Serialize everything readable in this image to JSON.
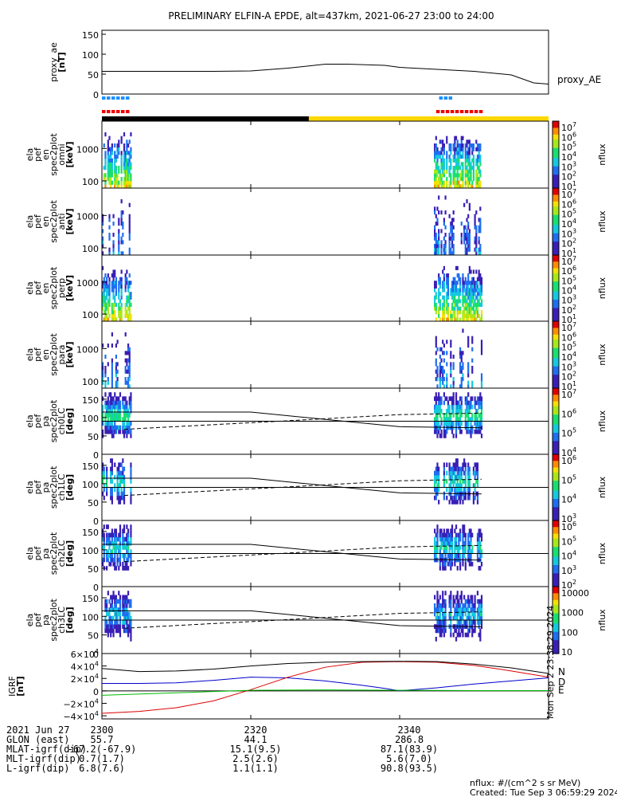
{
  "title": "PRELIMINARY ELFIN-A EPDE, alt=437km, 2021-06-27 23:00 to 24:00",
  "colorbar_unit": "nflux",
  "footer": {
    "unit_note": "nflux: #/(cm^2 s sr MeV)",
    "created": "Created: Tue Sep  3 06:59:29 2024",
    "side_stamp": "Mon Sep  2 23:38:29 2024"
  },
  "time_axis": {
    "date_label": "2021 Jun 27",
    "ticks": [
      "2300",
      "2320",
      "2340"
    ],
    "rows": [
      {
        "label": "GLON (east)",
        "values": [
          "55.7",
          "44.1",
          "286.8"
        ]
      },
      {
        "label": "MLAT-igrf(dip)",
        "values": [
          "-67.2(-67.9)",
          "15.1(9.5)",
          "87.1(83.9)"
        ]
      },
      {
        "label": "MLT-igrf(dip)",
        "values": [
          "0.7(1.7)",
          "2.5(2.6)",
          "5.6(7.0)"
        ]
      },
      {
        "label": "L-igrf(dip)",
        "values": [
          "6.8(7.6)",
          "1.1(1.1)",
          "90.8(93.5)"
        ]
      }
    ]
  },
  "chart_data": [
    {
      "type": "line",
      "id": "proxy_ae",
      "ylabel": [
        "proxy_ae",
        "[nT]"
      ],
      "yticks": [
        "150",
        "100",
        "50",
        "0"
      ],
      "ylim": [
        0,
        160
      ],
      "series": [
        {
          "name": "proxy_AE",
          "color": "#000000",
          "x": [
            0,
            10,
            15,
            20,
            25,
            30,
            33,
            38,
            40,
            45,
            50,
            55,
            58,
            60
          ],
          "y": [
            57,
            57,
            57,
            58,
            65,
            75,
            75,
            72,
            67,
            62,
            57,
            48,
            28,
            25
          ]
        }
      ]
    },
    {
      "type": "status_bars",
      "id": "data_availability",
      "bars": [
        {
          "color": "#1e90ff",
          "segments": [
            [
              0,
              3.8
            ],
            [
              45.3,
              47.0
            ]
          ]
        },
        {
          "color": "#ee0000",
          "segments": [
            [
              0,
              3.8
            ],
            [
              44.9,
              51.0
            ]
          ]
        },
        {
          "color": "#000000",
          "segments": [
            [
              0,
              27.8
            ]
          ]
        },
        {
          "color": "#ffd700",
          "segments": [
            [
              27.8,
              60
            ]
          ]
        }
      ]
    },
    {
      "type": "heatmap",
      "id": "en_omni",
      "ylabel": [
        "ela",
        "pef",
        "en",
        "spec2plot",
        "omni",
        "[keV]"
      ],
      "yticks": [
        "1000",
        "100"
      ],
      "ylog": true,
      "ylim": [
        60,
        7000
      ],
      "colorbar": {
        "ticks": [
          "10^7",
          "10^6",
          "10^5",
          "10^4",
          "10^3",
          "10^2",
          "10^1"
        ],
        "label": "nflux"
      }
    },
    {
      "type": "heatmap",
      "id": "en_anti",
      "ylabel": [
        "ela",
        "pef",
        "en",
        "spec2plot",
        "anti",
        "[keV]"
      ],
      "yticks": [
        "1000",
        "100"
      ],
      "ylog": true,
      "ylim": [
        60,
        7000
      ],
      "colorbar": {
        "ticks": [
          "10^7",
          "10^6",
          "10^5",
          "10^4",
          "10^3",
          "10^2",
          "10^1"
        ],
        "label": "nflux"
      }
    },
    {
      "type": "heatmap",
      "id": "en_perp",
      "ylabel": [
        "ela",
        "pef",
        "en",
        "spec2plot",
        "perp",
        "[keV]"
      ],
      "yticks": [
        "1000",
        "100"
      ],
      "ylog": true,
      "ylim": [
        60,
        7000
      ],
      "colorbar": {
        "ticks": [
          "10^7",
          "10^6",
          "10^5",
          "10^4",
          "10^3",
          "10^2",
          "10^1"
        ],
        "label": "nflux"
      }
    },
    {
      "type": "heatmap",
      "id": "en_para",
      "ylabel": [
        "ela",
        "pef",
        "en",
        "spec2plot",
        "para",
        "[keV]"
      ],
      "yticks": [
        "1000",
        "100"
      ],
      "ylog": true,
      "ylim": [
        60,
        7000
      ],
      "colorbar": {
        "ticks": [
          "10^7",
          "10^6",
          "10^5",
          "10^4",
          "10^3",
          "10^2",
          "10^1"
        ],
        "label": "nflux"
      }
    },
    {
      "type": "heatmap",
      "id": "pa_ch0",
      "ylabel": [
        "ela",
        "pef",
        "pa",
        "spec2plot",
        "ch0LC",
        "[deg]"
      ],
      "yticks": [
        "150",
        "100",
        "50",
        "0"
      ],
      "ylim": [
        0,
        180
      ],
      "colorbar": {
        "ticks": [
          "10^7",
          "10^6",
          "10^5",
          "10^4"
        ],
        "label": "nflux"
      }
    },
    {
      "type": "heatmap",
      "id": "pa_ch1",
      "ylabel": [
        "ela",
        "pef",
        "pa",
        "spec2plot",
        "ch1LC",
        "[deg]"
      ],
      "yticks": [
        "150",
        "100",
        "50",
        "0"
      ],
      "ylim": [
        0,
        180
      ],
      "colorbar": {
        "ticks": [
          "10^6",
          "10^5",
          "10^4",
          "10^3"
        ],
        "label": "nflux"
      }
    },
    {
      "type": "heatmap",
      "id": "pa_ch2",
      "ylabel": [
        "ela",
        "pef",
        "pa",
        "spec2plot",
        "ch2LC",
        "[deg]"
      ],
      "yticks": [
        "150",
        "100",
        "50",
        "0"
      ],
      "ylim": [
        0,
        180
      ],
      "colorbar": {
        "ticks": [
          "10^6",
          "10^5",
          "10^4",
          "10^3",
          "10^2"
        ],
        "label": "nflux"
      }
    },
    {
      "type": "heatmap",
      "id": "pa_ch3",
      "ylabel": [
        "ela",
        "pef",
        "pa",
        "spec2plot",
        "ch3LC",
        "[deg]"
      ],
      "yticks": [
        "150",
        "100",
        "50",
        "0"
      ],
      "ylim": [
        0,
        180
      ],
      "colorbar": {
        "ticks": [
          "10000",
          "1000",
          "100",
          "10"
        ],
        "label": "nflux"
      }
    },
    {
      "type": "line",
      "id": "igrf",
      "ylabel": [
        "IGRF",
        "[nT]"
      ],
      "yticks": [
        "6×10^4",
        "4×10^4",
        "2×10^4",
        "0",
        "−2×10^4",
        "−4×10^4"
      ],
      "ylim": [
        -45000,
        60000
      ],
      "series": [
        {
          "name": "N",
          "color": "#0000cc",
          "x": [
            0,
            5,
            10,
            15,
            20,
            25,
            30,
            35,
            38,
            40,
            45,
            50,
            55,
            60
          ],
          "y": [
            12000,
            12000,
            13000,
            17000,
            22000,
            21000,
            16000,
            9000,
            4000,
            200,
            5000,
            11000,
            16000,
            21000
          ]
        },
        {
          "name": "D",
          "color": "#dd0000",
          "x": [
            0,
            5,
            10,
            15,
            20,
            25,
            30,
            35,
            40,
            45,
            50,
            55,
            60
          ],
          "y": [
            -36000,
            -33000,
            -27000,
            -16000,
            2000,
            22000,
            38000,
            46000,
            47000,
            46000,
            41000,
            32000,
            22000
          ]
        },
        {
          "name": "E",
          "color": "#00bb00",
          "x": [
            0,
            10,
            20,
            30,
            40,
            50,
            60
          ],
          "y": [
            -7000,
            -3000,
            1000,
            1500,
            1000,
            500,
            500
          ]
        },
        {
          "name": "",
          "color": "#000000",
          "x": [
            0,
            5,
            10,
            15,
            20,
            25,
            30,
            35,
            40,
            45,
            50,
            55,
            60
          ],
          "y": [
            36000,
            31000,
            32000,
            35000,
            40000,
            44000,
            46000,
            47000,
            47500,
            47000,
            43000,
            37000,
            28000
          ]
        }
      ]
    }
  ]
}
